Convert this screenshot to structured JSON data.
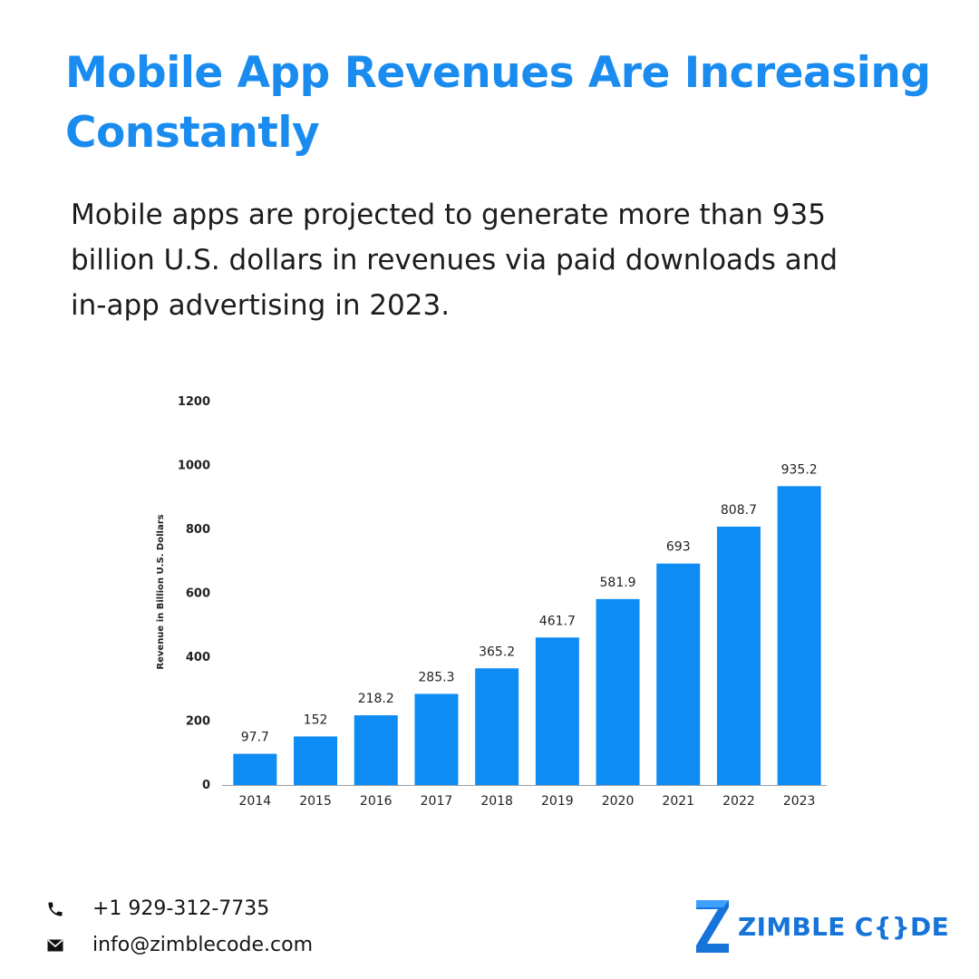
{
  "header": {
    "title": "Mobile App Revenues Are Increasing Constantly",
    "description": "Mobile apps are projected to generate more than 935 billion U.S. dollars in revenues via paid downloads and in-app advertising in 2023."
  },
  "colors": {
    "title": "#1a8cf0",
    "bar": "#0f8cf4",
    "text": "#1c1c1c",
    "brand": "#1673d8"
  },
  "chart_data": {
    "type": "bar",
    "title": "",
    "xlabel": "",
    "ylabel": "Revenue in Billion U.S. Dollars",
    "ylim": [
      0,
      1200
    ],
    "yticks": [
      0,
      200,
      400,
      600,
      800,
      1000,
      1200
    ],
    "grid": false,
    "legend": "none",
    "categories": [
      "2014",
      "2015",
      "2016",
      "2017",
      "2018",
      "2019",
      "2020",
      "2021",
      "2022",
      "2023"
    ],
    "values": [
      97.7,
      152,
      218.2,
      285.3,
      365.2,
      461.7,
      581.9,
      693,
      808.7,
      935.2
    ],
    "value_labels": [
      "97.7",
      "152",
      "218.2",
      "285.3",
      "365.2",
      "461.7",
      "581.9",
      "693",
      "808.7",
      "935.2"
    ]
  },
  "footer": {
    "phone": "+1 929-312-7735",
    "email": "info@zimblecode.com",
    "phone_icon": "phone-icon",
    "email_icon": "envelope-icon",
    "brand": "ZIMBLE C{}DE",
    "brand_icon": "zimble-z-logo"
  }
}
